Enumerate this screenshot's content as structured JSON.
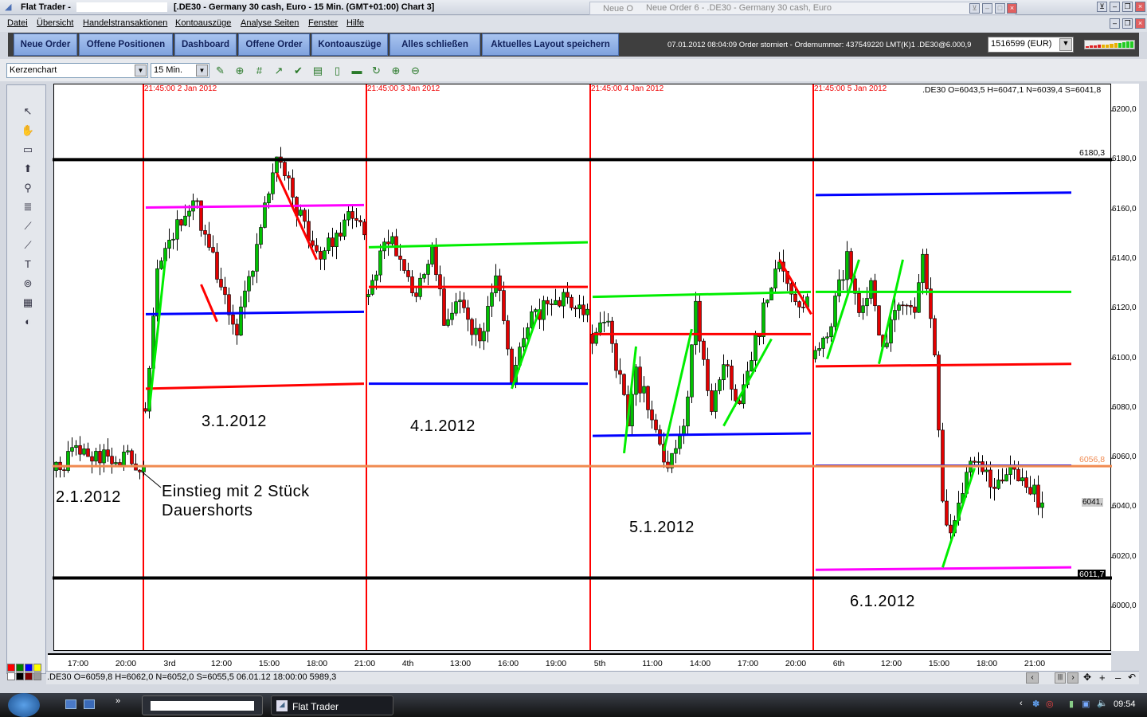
{
  "window": {
    "app_title": "Flat Trader -",
    "chart_title": "[.DE30 - Germany 30 cash, Euro - 15 Min. (GMT+01:00)   Chart 3]",
    "subwindow_back": "Neue O",
    "subwindow_title": "Neue Order 6 - .DE30 - Germany 30 cash, Euro"
  },
  "menu": [
    "Datei",
    "Übersicht",
    "Handelstransaktionen",
    "Kontoauszüge",
    "Analyse Seiten",
    "Fenster",
    "Hilfe"
  ],
  "nav_buttons": [
    "Neue Order",
    "Offene Positionen",
    "Dashboard",
    "Offene Order",
    "Kontoauszüge",
    "Alles schließen",
    "Aktuelles Layout speichern"
  ],
  "status_message": "07.01.2012 08:04:09 Order storniert - Ordernummer: 437549220 LMT(K)1 .DE30@6.000,9",
  "account": "1516599 (EUR)",
  "toolbar": {
    "chart_type": "Kerzenchart",
    "interval": "15 Min.",
    "icons": [
      "add-indicator-icon",
      "add-study-icon",
      "grid-icon",
      "chart-trend-icon",
      "check-chart-icon",
      "compare-icon",
      "document-icon",
      "print-icon",
      "refresh-icon",
      "zoom-in-chart-icon",
      "zoom-out-chart-icon"
    ]
  },
  "left_tools": [
    "cursor-icon",
    "hand-icon",
    "crosshair-icon",
    "arrow-up-icon",
    "zoom-icon",
    "fibonacci-icon",
    "trendline-icon",
    "channel-icon",
    "text-icon",
    "cycle-icon",
    "calculator-icon",
    "palette-icon"
  ],
  "chart": {
    "ohlc_header": ".DE30 O=6043,5 H=6047,1 N=6039,4 S=6041,8",
    "y_ticks": [
      {
        "v": 6200,
        "l": "6200,0"
      },
      {
        "v": 6180,
        "l": "6180,0"
      },
      {
        "v": 6160,
        "l": "6160,0"
      },
      {
        "v": 6140,
        "l": "6140,0"
      },
      {
        "v": 6120,
        "l": "6120,0"
      },
      {
        "v": 6100,
        "l": "6100,0"
      },
      {
        "v": 6080,
        "l": "6080,0"
      },
      {
        "v": 6060,
        "l": "6060,0"
      },
      {
        "v": 6040,
        "l": "6040,0"
      },
      {
        "v": 6020,
        "l": "6020,0"
      },
      {
        "v": 6000,
        "l": "6000,0"
      }
    ],
    "current_price_label": "6041,",
    "day_separators": [
      "21:45:00 2 Jan 2012",
      "21:45:00 3 Jan 2012",
      "21:45:00 4 Jan 2012",
      "21:45:00 5 Jan 2012"
    ],
    "x_labels": [
      "17:00",
      "20:00",
      "3rd",
      "12:00",
      "15:00",
      "18:00",
      "21:00",
      "4th",
      "13:00",
      "16:00",
      "19:00",
      "5th",
      "11:00",
      "14:00",
      "17:00",
      "20:00",
      "6th",
      "12:00",
      "15:00",
      "18:00",
      "21:00"
    ],
    "levels": [
      {
        "price": 6180.3,
        "label": "6180,3",
        "color": "#000000"
      },
      {
        "price": 6011.7,
        "label": "6011,7",
        "color": "#000000"
      },
      {
        "price": 6056.8,
        "label": "6056,8",
        "color": "#f08a50"
      }
    ],
    "day_lines": [
      {
        "day": 1,
        "color": "#ff00ff",
        "p": [
          6161,
          6162
        ]
      },
      {
        "day": 1,
        "color": "#0000ff",
        "p": [
          6118,
          6119
        ]
      },
      {
        "day": 1,
        "color": "#ff0000",
        "p": [
          6088,
          6090
        ]
      },
      {
        "day": 2,
        "color": "#00ee00",
        "p": [
          6145,
          6147
        ]
      },
      {
        "day": 2,
        "color": "#ff0000",
        "p": [
          6129,
          6129
        ]
      },
      {
        "day": 2,
        "color": "#0000ff",
        "p": [
          6090,
          6090
        ]
      },
      {
        "day": 3,
        "color": "#00ee00",
        "p": [
          6125,
          6127
        ]
      },
      {
        "day": 3,
        "color": "#ff0000",
        "p": [
          6110,
          6110
        ]
      },
      {
        "day": 3,
        "color": "#0000ff",
        "p": [
          6069,
          6070
        ]
      },
      {
        "day": 4,
        "color": "#0000ff",
        "p": [
          6166,
          6167
        ]
      },
      {
        "day": 4,
        "color": "#00ee00",
        "p": [
          6127,
          6127
        ]
      },
      {
        "day": 4,
        "color": "#ff0000",
        "p": [
          6097,
          6098
        ]
      },
      {
        "day": 4,
        "color": "#0000ff",
        "p": [
          6057,
          6057
        ]
      },
      {
        "day": 4,
        "color": "#ff00ff",
        "p": [
          6015,
          6016
        ]
      }
    ],
    "trend_lines": [
      {
        "day": 1,
        "color": "#00ee00",
        "a": [
          1,
          6080
        ],
        "b": [
          5,
          6140
        ]
      },
      {
        "day": 1,
        "color": "#ff0000",
        "a": [
          14,
          6130
        ],
        "b": [
          18,
          6115
        ]
      },
      {
        "day": 1,
        "color": "#ff0000",
        "a": [
          33,
          6175
        ],
        "b": [
          43,
          6140
        ]
      },
      {
        "day": 2,
        "color": "#00ee00",
        "a": [
          36,
          6088
        ],
        "b": [
          43,
          6120
        ]
      },
      {
        "day": 3,
        "color": "#00ee00",
        "a": [
          8,
          6062
        ],
        "b": [
          11,
          6105
        ]
      },
      {
        "day": 3,
        "color": "#00ee00",
        "a": [
          18,
          6063
        ],
        "b": [
          25,
          6112
        ]
      },
      {
        "day": 3,
        "color": "#00ee00",
        "a": [
          33,
          6073
        ],
        "b": [
          45,
          6108
        ]
      },
      {
        "day": 3,
        "color": "#ff0000",
        "a": [
          47,
          6140
        ],
        "b": [
          55,
          6118
        ]
      },
      {
        "day": 4,
        "color": "#00ee00",
        "a": [
          3,
          6100
        ],
        "b": [
          11,
          6140
        ]
      },
      {
        "day": 4,
        "color": "#00ee00",
        "a": [
          16,
          6098
        ],
        "b": [
          22,
          6140
        ]
      },
      {
        "day": 4,
        "color": "#00ee00",
        "a": [
          32,
          6016
        ],
        "b": [
          40,
          6056
        ]
      }
    ],
    "candles_path": [
      [
        [
          0,
          6055
        ],
        [
          6,
          6063
        ],
        [
          12,
          6060
        ],
        [
          18,
          6060
        ],
        [
          22,
          6057
        ]
      ],
      [
        [
          0,
          6080
        ],
        [
          3,
          6140
        ],
        [
          12,
          6165
        ],
        [
          23,
          6112
        ],
        [
          33,
          6180
        ],
        [
          44,
          6140
        ],
        [
          52,
          6160
        ],
        [
          55,
          6150
        ]
      ],
      [
        [
          0,
          6125
        ],
        [
          5,
          6150
        ],
        [
          12,
          6125
        ],
        [
          16,
          6145
        ],
        [
          19,
          6115
        ],
        [
          23,
          6125
        ],
        [
          28,
          6105
        ],
        [
          32,
          6135
        ],
        [
          36,
          6090
        ],
        [
          40,
          6115
        ],
        [
          48,
          6125
        ],
        [
          55,
          6120
        ]
      ],
      [
        [
          0,
          6110
        ],
        [
          4,
          6115
        ],
        [
          9,
          6075
        ],
        [
          11,
          6095
        ],
        [
          17,
          6065
        ],
        [
          19,
          6055
        ],
        [
          23,
          6070
        ],
        [
          26,
          6120
        ],
        [
          30,
          6075
        ],
        [
          33,
          6100
        ],
        [
          36,
          6080
        ],
        [
          40,
          6100
        ],
        [
          44,
          6125
        ],
        [
          47,
          6140
        ],
        [
          51,
          6120
        ],
        [
          54,
          6125
        ]
      ],
      [
        [
          0,
          6100
        ],
        [
          3,
          6110
        ],
        [
          8,
          6140
        ],
        [
          11,
          6120
        ],
        [
          14,
          6130
        ],
        [
          17,
          6105
        ],
        [
          22,
          6125
        ],
        [
          25,
          6120
        ],
        [
          27,
          6140
        ],
        [
          30,
          6100
        ],
        [
          32,
          6040
        ],
        [
          34,
          6030
        ],
        [
          39,
          6060
        ],
        [
          44,
          6050
        ],
        [
          50,
          6055
        ],
        [
          57,
          6042
        ]
      ]
    ],
    "annotations": {
      "d2": "2.1.2012",
      "d3": "3.1.2012",
      "d4": "4.1.2012",
      "d5": "5.1.2012",
      "d6": "6.1.2012",
      "entry1": "Einstieg mit 2 Stück",
      "entry2": "Dauershorts"
    }
  },
  "status_bar": ".DE30 O=6059,8 H=6062,0 N=6052,0 S=6055,5   06.01.12 18:00:00 5989,3",
  "colors": [
    "#ff0000",
    "#008000",
    "#0000ff",
    "#ffff00",
    "#ffffff",
    "#000000",
    "#800000",
    "#999999"
  ],
  "taskbar": {
    "app": "Flat Trader",
    "clock": "09:54"
  }
}
